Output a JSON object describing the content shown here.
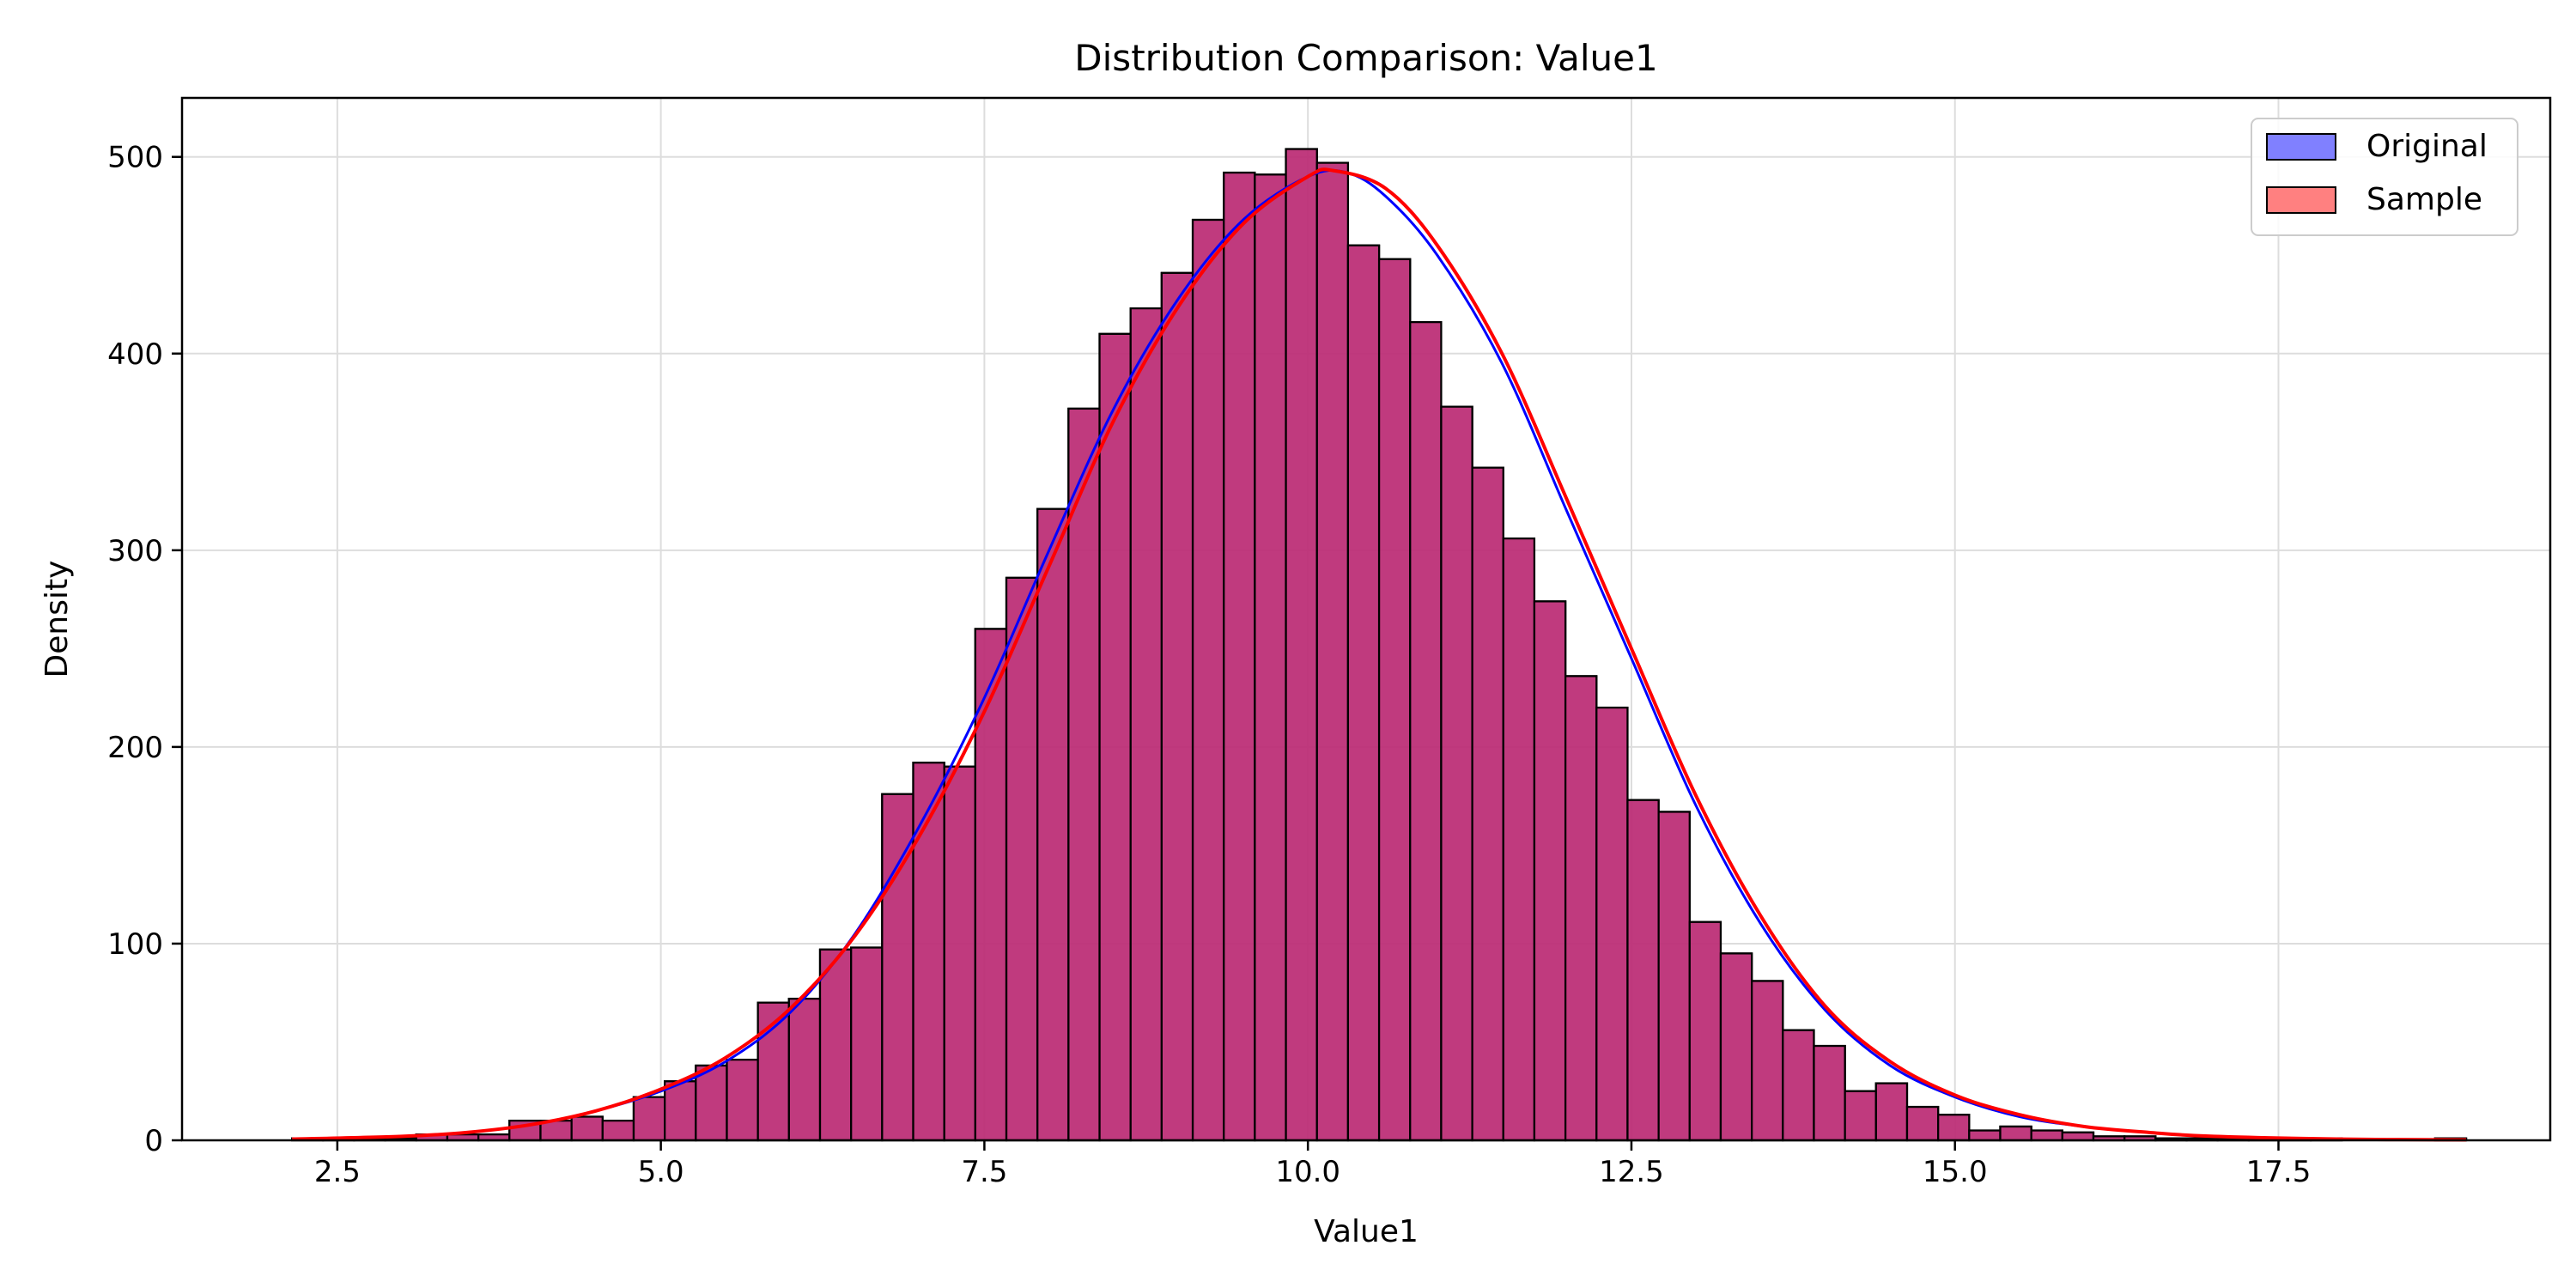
{
  "chart_data": {
    "type": "bar",
    "title": "Distribution Comparison: Value1",
    "xlabel": "Value1",
    "ylabel": "Density",
    "xlim": [
      1.3,
      19.6
    ],
    "ylim": [
      0,
      530
    ],
    "xticks": [
      "2.5",
      "5.0",
      "7.5",
      "10.0",
      "12.5",
      "15.0",
      "17.5"
    ],
    "xtick_values": [
      2.5,
      5.0,
      7.5,
      10.0,
      12.5,
      15.0,
      17.5
    ],
    "yticks": [
      "0",
      "100",
      "200",
      "300",
      "400",
      "500"
    ],
    "ytick_values": [
      0,
      100,
      200,
      300,
      400,
      500
    ],
    "grid": true,
    "legend_position": "top-right",
    "bin_edges": [
      2.15,
      2.39,
      2.63,
      2.87,
      3.11,
      3.35,
      3.59,
      3.83,
      4.07,
      4.31,
      4.55,
      4.79,
      5.03,
      5.27,
      5.51,
      5.75,
      5.99,
      6.23,
      6.47,
      6.71,
      6.95,
      7.19,
      7.43,
      7.67,
      7.91,
      8.15,
      8.39,
      8.63,
      8.87,
      9.11,
      9.35,
      9.59,
      9.83,
      10.07,
      10.31,
      10.55,
      10.79,
      11.03,
      11.27,
      11.51,
      11.75,
      11.99,
      12.23,
      12.47,
      12.71,
      12.95,
      13.19,
      13.43,
      13.67,
      13.91,
      14.15,
      14.39,
      14.63,
      14.87,
      15.11,
      15.35,
      15.59,
      15.83,
      16.07,
      16.31,
      16.55,
      16.79,
      17.03,
      17.27,
      17.51,
      17.75,
      17.99,
      18.23,
      18.47,
      18.71,
      18.95
    ],
    "series": [
      {
        "name": "Original",
        "color": "#0000ff",
        "values": [
          1,
          1,
          1,
          1,
          3,
          3,
          3,
          10,
          10,
          12,
          10,
          22,
          30,
          38,
          41,
          70,
          72,
          97,
          98,
          176,
          192,
          190,
          260,
          286,
          321,
          372,
          410,
          423,
          441,
          468,
          492,
          491,
          504,
          497,
          455,
          448,
          416,
          373,
          342,
          306,
          274,
          236,
          220,
          173,
          167,
          111,
          95,
          81,
          56,
          48,
          25,
          29,
          17,
          13,
          5,
          7,
          5,
          4,
          2,
          2,
          1,
          1,
          1,
          1,
          1,
          1,
          0,
          0,
          0,
          1
        ],
        "kde": [
          [
            2.15,
            0.6
          ],
          [
            3.0,
            2
          ],
          [
            3.5,
            4
          ],
          [
            4.0,
            8
          ],
          [
            4.5,
            15
          ],
          [
            5.0,
            25
          ],
          [
            5.5,
            40
          ],
          [
            6.0,
            65
          ],
          [
            6.5,
            105
          ],
          [
            7.0,
            160
          ],
          [
            7.5,
            225
          ],
          [
            8.0,
            300
          ],
          [
            8.5,
            372
          ],
          [
            9.0,
            428
          ],
          [
            9.5,
            468
          ],
          [
            10.0,
            490
          ],
          [
            10.3,
            492
          ],
          [
            10.6,
            480
          ],
          [
            11.0,
            450
          ],
          [
            11.5,
            395
          ],
          [
            12.0,
            320
          ],
          [
            12.5,
            245
          ],
          [
            13.0,
            170
          ],
          [
            13.5,
            110
          ],
          [
            14.0,
            66
          ],
          [
            14.5,
            38
          ],
          [
            15.0,
            22
          ],
          [
            15.5,
            12
          ],
          [
            16.0,
            7
          ],
          [
            16.5,
            4
          ],
          [
            17.0,
            2
          ],
          [
            18.0,
            0.6
          ],
          [
            18.95,
            0.2
          ]
        ]
      },
      {
        "name": "Sample",
        "color": "#ff0000",
        "values": [
          1,
          1,
          1,
          1,
          3,
          3,
          3,
          10,
          10,
          12,
          10,
          22,
          30,
          38,
          41,
          70,
          72,
          97,
          98,
          176,
          192,
          190,
          260,
          286,
          321,
          372,
          410,
          423,
          441,
          468,
          492,
          491,
          504,
          497,
          455,
          448,
          416,
          373,
          342,
          306,
          274,
          236,
          220,
          173,
          167,
          111,
          95,
          81,
          56,
          48,
          25,
          29,
          17,
          13,
          5,
          7,
          5,
          4,
          2,
          2,
          1,
          1,
          1,
          1,
          1,
          1,
          0,
          0,
          0,
          1
        ],
        "kde": [
          [
            2.15,
            0.6
          ],
          [
            3.0,
            2
          ],
          [
            3.5,
            4
          ],
          [
            4.0,
            8
          ],
          [
            4.5,
            15
          ],
          [
            5.0,
            26
          ],
          [
            5.5,
            42
          ],
          [
            6.0,
            67
          ],
          [
            6.5,
            104
          ],
          [
            7.0,
            155
          ],
          [
            7.5,
            218
          ],
          [
            8.0,
            292
          ],
          [
            8.5,
            366
          ],
          [
            9.0,
            424
          ],
          [
            9.5,
            466
          ],
          [
            10.0,
            490
          ],
          [
            10.2,
            493
          ],
          [
            10.6,
            484
          ],
          [
            11.0,
            455
          ],
          [
            11.5,
            400
          ],
          [
            12.0,
            326
          ],
          [
            12.5,
            250
          ],
          [
            13.0,
            175
          ],
          [
            13.5,
            114
          ],
          [
            14.0,
            68
          ],
          [
            14.5,
            40
          ],
          [
            15.0,
            23
          ],
          [
            15.5,
            13
          ],
          [
            16.0,
            7
          ],
          [
            16.5,
            4
          ],
          [
            17.0,
            2
          ],
          [
            18.0,
            0.6
          ],
          [
            18.95,
            0.2
          ]
        ]
      }
    ],
    "bar_fill_color": "#c03a7d",
    "bar_edge_color": "#000000"
  }
}
